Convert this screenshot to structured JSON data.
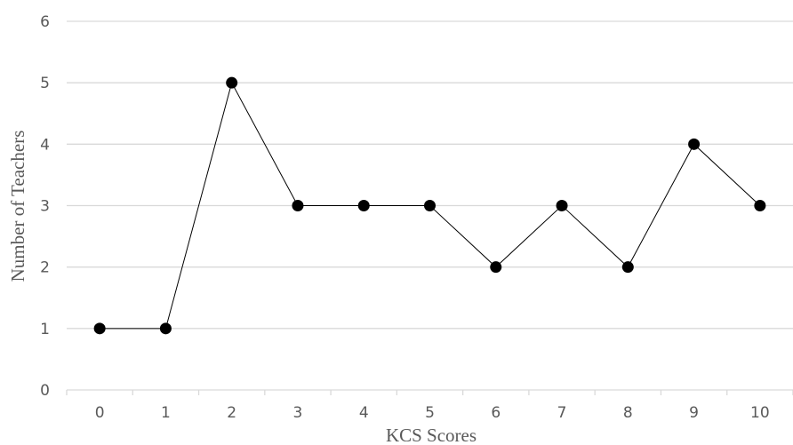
{
  "chart_data": {
    "type": "line",
    "categories": [
      "0",
      "1",
      "2",
      "3",
      "4",
      "5",
      "6",
      "7",
      "8",
      "9",
      "10"
    ],
    "series": [
      {
        "values": [
          1,
          1,
          5,
          3,
          3,
          3,
          2,
          3,
          2,
          4,
          3
        ]
      }
    ],
    "xlabel": "KCS Scores",
    "ylabel": "Number  of Teachers",
    "ylim": [
      0,
      6
    ],
    "yticks": [
      "0",
      "1",
      "2",
      "3",
      "4",
      "5",
      "6"
    ],
    "grid": true,
    "colors": {
      "line": "#000000",
      "marker": "#000000",
      "grid": "#d9d9d9",
      "text": "#595959"
    }
  }
}
